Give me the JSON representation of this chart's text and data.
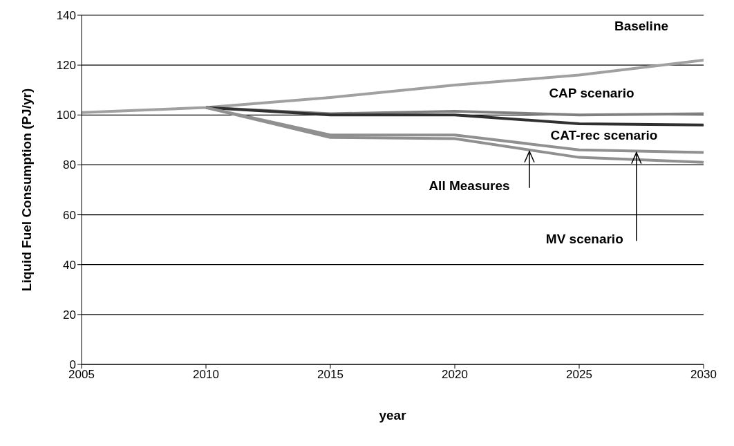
{
  "chart_data": {
    "type": "line",
    "xlabel": "year",
    "ylabel": "Liquid Fuel Consumption  (PJ/yr)",
    "xlim": [
      2005,
      2030
    ],
    "xticks": [
      2005,
      2010,
      2015,
      2020,
      2025,
      2030
    ],
    "ylim": [
      0,
      140
    ],
    "yticks": [
      0,
      20,
      40,
      60,
      80,
      100,
      120,
      140
    ],
    "grid": "y",
    "marker": "none",
    "line_style": "solid",
    "series": [
      {
        "color": "#a0a0a0",
        "x": [
          2005,
          2010,
          2015,
          2020,
          2025,
          2030
        ],
        "values": [
          101,
          103,
          107,
          112,
          116,
          122
        ]
      },
      {
        "color": "#808080",
        "x": [
          2010,
          2015,
          2020,
          2025,
          2030
        ],
        "values": [
          103,
          100.5,
          101.5,
          100,
          100.5
        ]
      },
      {
        "color": "#303030",
        "x": [
          2010,
          2015,
          2020,
          2025,
          2030
        ],
        "values": [
          103,
          100,
          100,
          96.5,
          96
        ]
      },
      {
        "color": "#909090",
        "x": [
          2010,
          2015,
          2020,
          2025,
          2030
        ],
        "values": [
          103,
          92,
          92,
          86,
          85
        ]
      },
      {
        "color": "#909090",
        "x": [
          2010,
          2015,
          2020,
          2025,
          2030
        ],
        "values": [
          103,
          91,
          90.5,
          83,
          81
        ]
      }
    ],
    "annotations": [
      {
        "text": "Baseline",
        "x": 2027.5,
        "y": 120
      },
      {
        "text": "CAP scenario",
        "x": 2025.5,
        "y": 100
      },
      {
        "text": "CAT-rec scenario",
        "x": 2026,
        "y": 96.5
      },
      {
        "text": "All Measures",
        "x": 2023,
        "y": 86
      },
      {
        "text": "MV scenario",
        "x": 2027.3,
        "y": 85.5
      }
    ]
  }
}
